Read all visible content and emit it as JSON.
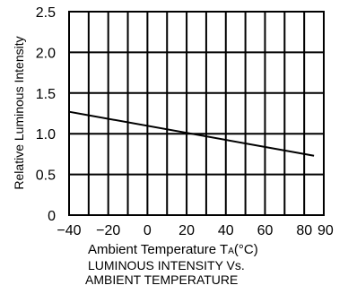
{
  "chart_data": {
    "type": "line",
    "ylabel": "Relative Luminous Intensity",
    "xlabel": "Ambient Temperature T",
    "xlabel_sub": "A",
    "xlabel_unit": "(°C)",
    "xlim": [
      -40,
      90
    ],
    "ylim": [
      0,
      2.5
    ],
    "x_grid_values": [
      -40,
      -30,
      -20,
      -10,
      0,
      10,
      20,
      30,
      40,
      50,
      60,
      70,
      80,
      90
    ],
    "x_tick_labels": [
      {
        "value": -40,
        "label": "−40"
      },
      {
        "value": -20,
        "label": "−20"
      },
      {
        "value": 0,
        "label": "0"
      },
      {
        "value": 20,
        "label": "20"
      },
      {
        "value": 40,
        "label": "40"
      },
      {
        "value": 60,
        "label": "60"
      },
      {
        "value": 80,
        "label": "80"
      },
      {
        "value": 90,
        "label": "90"
      }
    ],
    "y_grid_values": [
      0,
      0.5,
      1.0,
      1.5,
      2.0,
      2.5
    ],
    "y_tick_labels": [
      "0",
      "0.5",
      "1.0",
      "1.5",
      "2.0",
      "2.5"
    ],
    "grid": true,
    "series": [
      {
        "x": [
          -40,
          85
        ],
        "y": [
          1.27,
          0.73
        ]
      }
    ]
  },
  "caption": {
    "line1": "LUMINOUS INTENSITY Vs.",
    "line2": "AMBIENT TEMPERATURE"
  },
  "colors": {
    "line": "#000000",
    "grid": "#000000"
  }
}
